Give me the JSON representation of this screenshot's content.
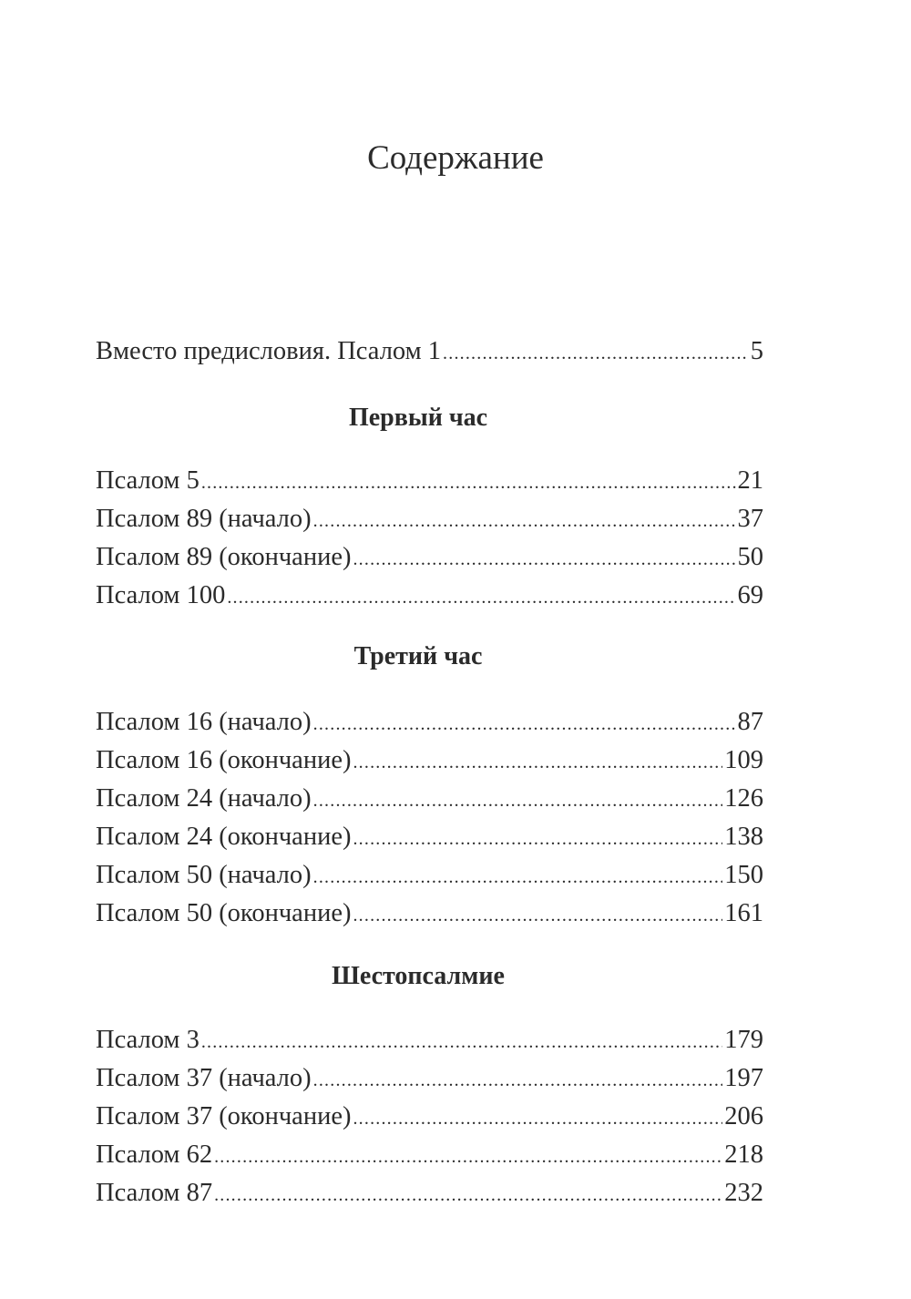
{
  "title": "Содержание",
  "intro": {
    "label": "Вместо предисловия. Псалом 1",
    "page": "5"
  },
  "sections": [
    {
      "heading": "Первый час",
      "entries": [
        {
          "label": "Псалом 5",
          "page": "21"
        },
        {
          "label": "Псалом 89 (начало)",
          "page": "37"
        },
        {
          "label": "Псалом 89 (окончание)",
          "page": "50"
        },
        {
          "label": "Псалом 100",
          "page": "69"
        }
      ]
    },
    {
      "heading": "Третий час",
      "entries": [
        {
          "label": "Псалом 16 (начало)",
          "page": "87"
        },
        {
          "label": "Псалом 16 (окончание)",
          "page": "109"
        },
        {
          "label": "Псалом 24 (начало)",
          "page": "126"
        },
        {
          "label": "Псалом 24 (окончание)",
          "page": "138"
        },
        {
          "label": "Псалом 50 (начало)",
          "page": "150"
        },
        {
          "label": "Псалом 50 (окончание)",
          "page": "161"
        }
      ]
    },
    {
      "heading": "Шестопсалмие",
      "entries": [
        {
          "label": "Псалом 3",
          "page": "179"
        },
        {
          "label": "Псалом 37 (начало)",
          "page": "197"
        },
        {
          "label": "Псалом 37 (окончание)",
          "page": "206"
        },
        {
          "label": "Псалом 62",
          "page": "218"
        },
        {
          "label": "Псалом 87",
          "page": "232"
        }
      ]
    }
  ]
}
